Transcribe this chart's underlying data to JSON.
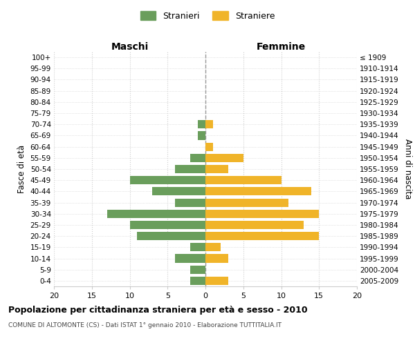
{
  "age_groups": [
    "100+",
    "95-99",
    "90-94",
    "85-89",
    "80-84",
    "75-79",
    "70-74",
    "65-69",
    "60-64",
    "55-59",
    "50-54",
    "45-49",
    "40-44",
    "35-39",
    "30-34",
    "25-29",
    "20-24",
    "15-19",
    "10-14",
    "5-9",
    "0-4"
  ],
  "birth_years": [
    "≤ 1909",
    "1910-1914",
    "1915-1919",
    "1920-1924",
    "1925-1929",
    "1930-1934",
    "1935-1939",
    "1940-1944",
    "1945-1949",
    "1950-1954",
    "1955-1959",
    "1960-1964",
    "1965-1969",
    "1970-1974",
    "1975-1979",
    "1980-1984",
    "1985-1989",
    "1990-1994",
    "1995-1999",
    "2000-2004",
    "2005-2009"
  ],
  "maschi": [
    0,
    0,
    0,
    0,
    0,
    0,
    1,
    1,
    0,
    2,
    4,
    10,
    7,
    4,
    13,
    10,
    9,
    2,
    4,
    2,
    2
  ],
  "femmine": [
    0,
    0,
    0,
    0,
    0,
    0,
    1,
    0,
    1,
    5,
    3,
    10,
    14,
    11,
    15,
    13,
    15,
    2,
    3,
    0,
    3
  ],
  "color_maschi": "#6a9e5c",
  "color_femmine": "#f0b429",
  "xlim": 20,
  "title": "Popolazione per cittadinanza straniera per età e sesso - 2010",
  "subtitle": "COMUNE DI ALTOMONTE (CS) - Dati ISTAT 1° gennaio 2010 - Elaborazione TUTTITALIA.IT",
  "xlabel_left": "Maschi",
  "xlabel_right": "Femmine",
  "ylabel_left": "Fasce di età",
  "ylabel_right": "Anni di nascita",
  "legend_maschi": "Stranieri",
  "legend_femmine": "Straniere",
  "bg_color": "#ffffff",
  "grid_color": "#cccccc"
}
